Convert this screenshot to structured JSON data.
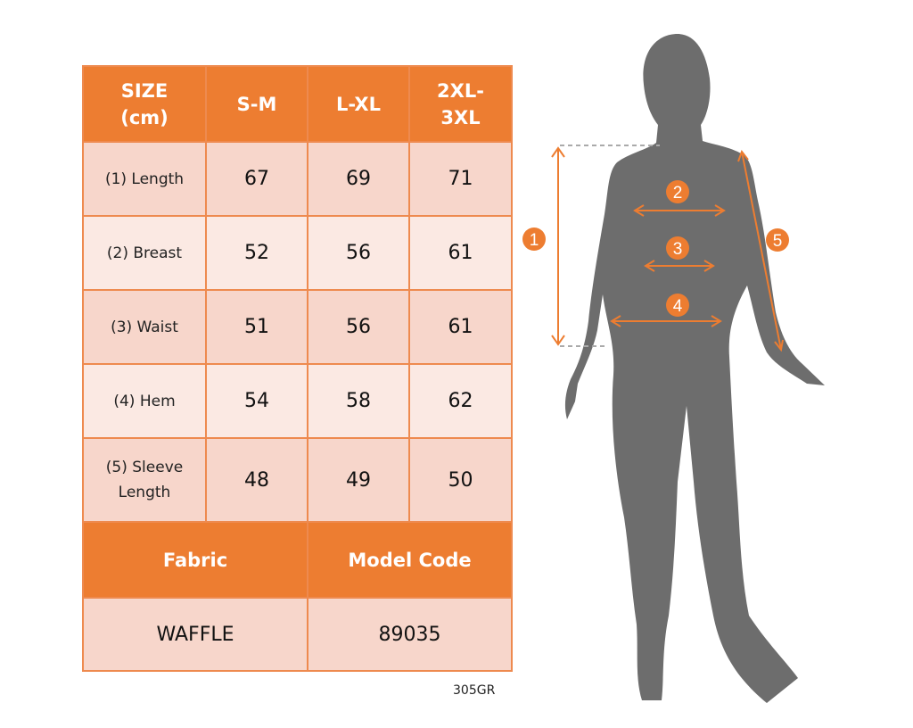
{
  "table": {
    "header": [
      "SIZE\n(cm)",
      "S-M",
      "L-XL",
      "2XL-\n3XL"
    ],
    "header_lines": [
      [
        "SIZE",
        "(cm)"
      ],
      [
        "S-M"
      ],
      [
        "L-XL"
      ],
      [
        "2XL-",
        "3XL"
      ]
    ],
    "rows": [
      {
        "label": [
          "(1) Length"
        ],
        "values": [
          "67",
          "69",
          "71"
        ]
      },
      {
        "label": [
          "(2) Breast"
        ],
        "values": [
          "52",
          "56",
          "61"
        ]
      },
      {
        "label": [
          "(3) Waist"
        ],
        "values": [
          "51",
          "56",
          "61"
        ]
      },
      {
        "label": [
          "(4) Hem"
        ],
        "values": [
          "54",
          "58",
          "62"
        ]
      },
      {
        "label": [
          "(5) Sleeve",
          "Length"
        ],
        "values": [
          "48",
          "49",
          "50"
        ]
      }
    ],
    "fabric_label": "Fabric",
    "model_code_label": "Model Code",
    "fabric_value": "WAFFLE",
    "model_code_value": "89035"
  },
  "code": "305GR",
  "figure": {
    "markers": [
      "1",
      "2",
      "3",
      "4",
      "5"
    ]
  },
  "colors": {
    "accent": "#ed7d31",
    "silhouette": "#6d6d6d"
  }
}
